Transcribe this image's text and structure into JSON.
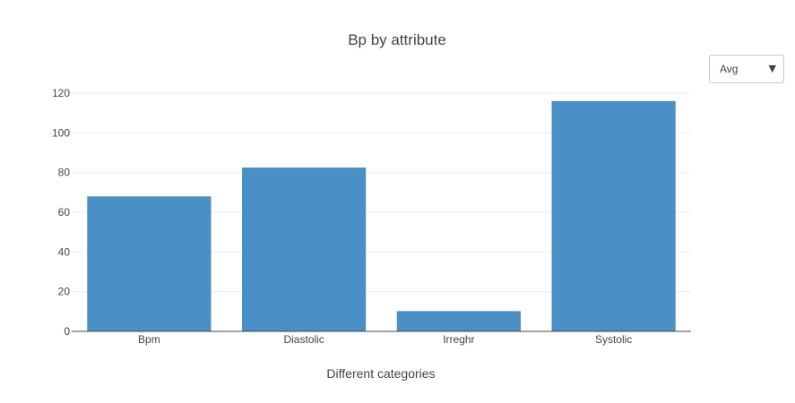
{
  "controls": {
    "aggregation_selected": "Avg",
    "caret_icon": "▼"
  },
  "chart_data": {
    "type": "bar",
    "title": "Bp by attribute",
    "xlabel": "Different categories",
    "ylabel": "",
    "categories": [
      "Bpm",
      "Diastolic",
      "Irreghr",
      "Systolic"
    ],
    "values": [
      68,
      82.5,
      10.2,
      116
    ],
    "ylim": [
      0,
      120
    ],
    "yticks": [
      0,
      20,
      40,
      60,
      80,
      100,
      120
    ],
    "grid": true,
    "bar_color": "#4a8fc6"
  }
}
